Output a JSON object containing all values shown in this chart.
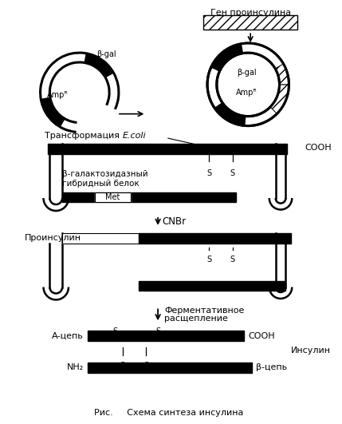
{
  "title": "Рис.     Схема синтеза инсулина",
  "bg_color": "#ffffff",
  "text_color": "#000000",
  "labels": {
    "gen_proinsulin": "Ген проинсулина",
    "beta_gal_left": "β-gal",
    "ampR_left": "Ampᴿ",
    "beta_gal_right": "β-gal",
    "ampR_right": "Ampᴿ",
    "COOH_1": "COOH",
    "hybrid_protein_1": "β-галактозидазный",
    "hybrid_protein_2": "гибридный белок",
    "Met": "Met",
    "CNBr": "CNBr",
    "proinsulin": "Проинсулин",
    "enzymatic_1": "Ферментативное",
    "enzymatic_2": "расщепление",
    "A_chain": "А-цепь",
    "COOH_2": "COOH",
    "insulin": "Инсулин",
    "NH2": "NH₂",
    "B_chain": "β-цепь"
  }
}
